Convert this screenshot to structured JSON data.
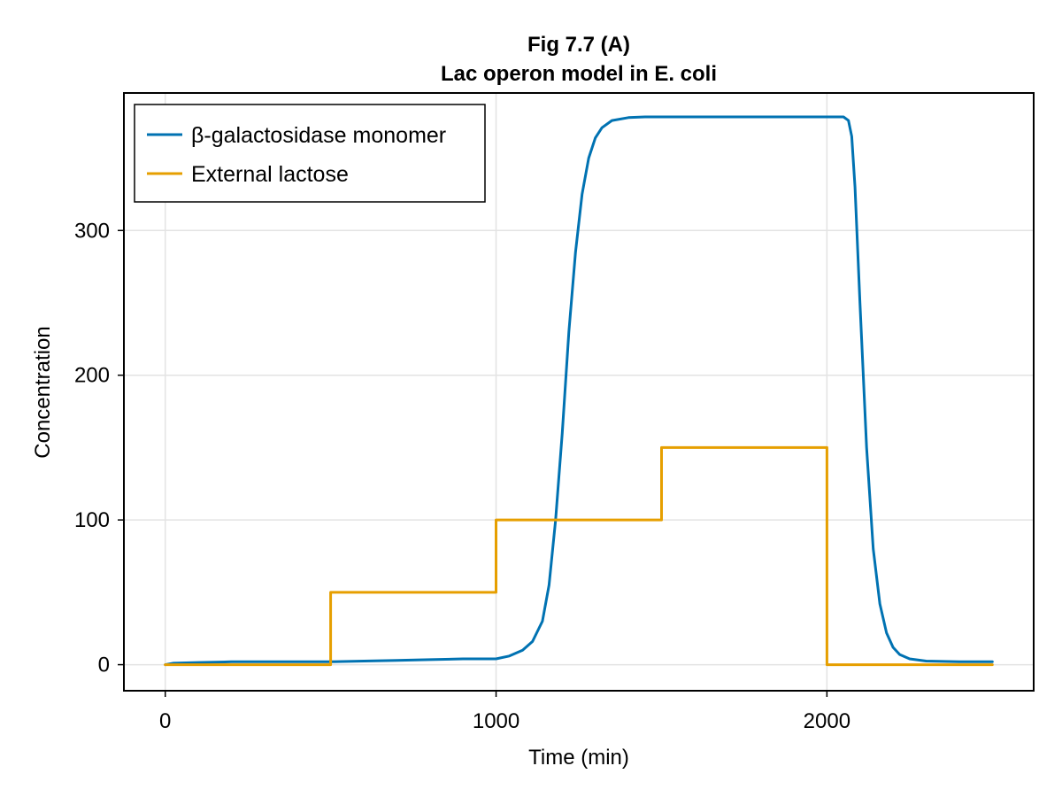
{
  "chart_data": {
    "type": "line",
    "title": "Fig 7.7 (A)",
    "subtitle": "Lac operon model in E. coli",
    "xlabel": "Time (min)",
    "ylabel": "Concentration",
    "xlim": [
      -125,
      2625
    ],
    "ylim": [
      -18,
      395
    ],
    "xticks": [
      0,
      1000,
      2000
    ],
    "yticks": [
      0,
      100,
      200,
      300
    ],
    "xtick_labels": [
      "0",
      "1000",
      "2000"
    ],
    "ytick_labels": [
      "0",
      "100",
      "200",
      "300"
    ],
    "grid": true,
    "legend_position": "top-left",
    "series": [
      {
        "name": "β-galactosidase monomer",
        "color": "#0072b2",
        "x": [
          0,
          25,
          100,
          200,
          300,
          400,
          500,
          600,
          700,
          800,
          900,
          1000,
          1040,
          1080,
          1110,
          1140,
          1160,
          1180,
          1200,
          1220,
          1240,
          1260,
          1280,
          1300,
          1320,
          1350,
          1400,
          1450,
          1500,
          1600,
          1800,
          2000,
          2050,
          2065,
          2075,
          2085,
          2100,
          2120,
          2140,
          2160,
          2180,
          2200,
          2220,
          2250,
          2300,
          2400,
          2500
        ],
        "values": [
          0,
          1,
          1.5,
          2,
          2,
          2,
          2,
          2.5,
          3,
          3.5,
          4,
          4,
          6,
          10,
          16,
          30,
          55,
          100,
          160,
          230,
          285,
          325,
          350,
          364,
          371,
          376,
          378,
          378.5,
          378.5,
          378.5,
          378.5,
          378.5,
          378.5,
          376,
          365,
          330,
          250,
          150,
          80,
          42,
          22,
          12,
          7,
          4,
          2.5,
          2,
          2
        ]
      },
      {
        "name": "External lactose",
        "color": "#e69f00",
        "x": [
          0,
          500,
          500,
          1000,
          1000,
          1500,
          1500,
          2000,
          2000,
          2500
        ],
        "values": [
          0,
          0,
          50,
          50,
          100,
          100,
          150,
          150,
          0,
          0
        ]
      }
    ]
  }
}
